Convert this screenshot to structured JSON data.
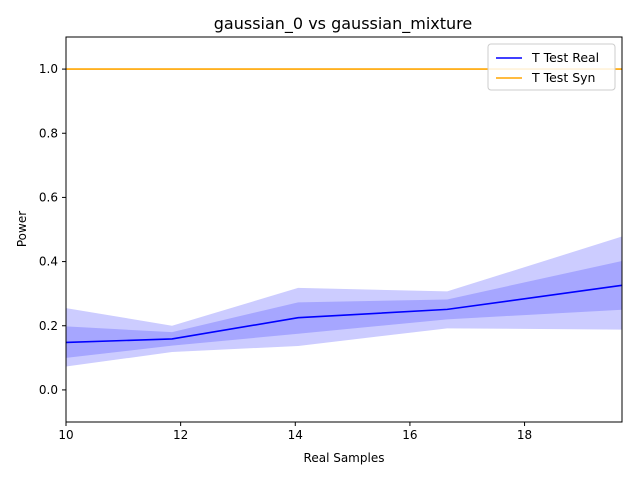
{
  "chart_data": {
    "type": "line",
    "title": "gaussian_0 vs gaussian_mixture",
    "xlabel": "Real Samples",
    "ylabel": "Power",
    "xlim": [
      10,
      19.7
    ],
    "ylim": [
      -0.1,
      1.1
    ],
    "xticks": [
      "10",
      "12",
      "14",
      "16",
      "18"
    ],
    "yticks": [
      "0.0",
      "0.2",
      "0.4",
      "0.6",
      "0.8",
      "1.0"
    ],
    "grid": false,
    "legend_position": "top-right",
    "series": [
      {
        "name": "T Test Real",
        "color": "#0000ff",
        "x": [
          10,
          11.85,
          14.05,
          16.65,
          19.7
        ],
        "y": [
          0.148,
          0.159,
          0.225,
          0.251,
          0.326
        ],
        "inner_band": {
          "color": "#a6a6ff",
          "lower": [
            0.1,
            0.138,
            0.175,
            0.22,
            0.25
          ],
          "upper": [
            0.198,
            0.18,
            0.273,
            0.282,
            0.402
          ]
        },
        "outer_band": {
          "color": "#ccccff",
          "lower": [
            0.073,
            0.118,
            0.137,
            0.192,
            0.188
          ],
          "upper": [
            0.255,
            0.2,
            0.318,
            0.307,
            0.478
          ]
        }
      },
      {
        "name": "T Test Syn",
        "color": "#ffa500",
        "x": [
          10,
          11.85,
          14.05,
          16.65,
          19.7
        ],
        "y": [
          1.0,
          1.0,
          1.0,
          1.0,
          1.0
        ]
      }
    ]
  }
}
